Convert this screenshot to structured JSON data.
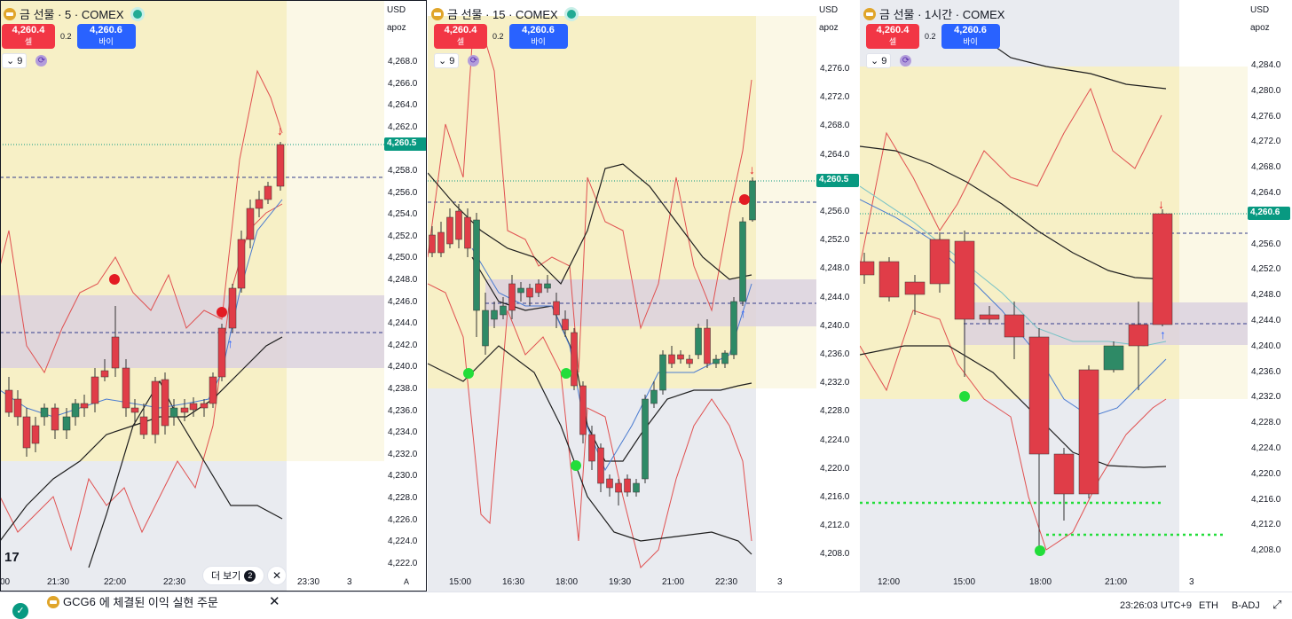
{
  "colors": {
    "up": "#2e8a66",
    "down": "#e03d48",
    "zone_yellow": "#f7f0c6",
    "zone_purple": "#d9cfe0",
    "zone_grey": "#e9ebf0",
    "band_red": "#e05050",
    "band_black": "#1e1e1e",
    "price_tag": "#089981"
  },
  "panes": [
    {
      "id": "p1",
      "title": "금 선물 · 5 · COMEX",
      "sell": {
        "price": "4,260.4",
        "label": "셀"
      },
      "spread": "0.2",
      "buy": {
        "price": "4,260.6",
        "label": "바이"
      },
      "indicator": "9",
      "currency": "USD",
      "mode": "apoz",
      "price_label": "4,260.5",
      "ticks": [
        "4,268.0",
        "4,266.0",
        "4,264.0",
        "4,262.0",
        "4,258.0",
        "4,256.0",
        "4,254.0",
        "4,252.0",
        "4,250.0",
        "4,248.0",
        "4,246.0",
        "4,244.0",
        "4,242.0",
        "4,240.0",
        "4,238.0",
        "4,236.0",
        "4,234.0",
        "4,232.0",
        "4,230.0",
        "4,228.0",
        "4,226.0",
        "4,224.0",
        "4,222.0"
      ],
      "times": [
        "21:30",
        "22:00",
        "22:30",
        "23:30",
        "3"
      ],
      "times_partial": "00",
      "scale_btn": "A"
    },
    {
      "id": "p2",
      "title": "금 선물 · 15 · COMEX",
      "sell": {
        "price": "4,260.4",
        "label": "셀"
      },
      "spread": "0.2",
      "buy": {
        "price": "4,260.6",
        "label": "바이"
      },
      "indicator": "9",
      "currency": "USD",
      "mode": "apoz",
      "price_label": "4,260.5",
      "ticks": [
        "4,276.0",
        "4,272.0",
        "4,268.0",
        "4,264.0",
        "4,256.0",
        "4,252.0",
        "4,248.0",
        "4,244.0",
        "4,240.0",
        "4,236.0",
        "4,232.0",
        "4,228.0",
        "4,224.0",
        "4,220.0",
        "4,216.0",
        "4,212.0",
        "4,208.0"
      ],
      "times": [
        "15:00",
        "16:30",
        "18:00",
        "19:30",
        "21:00",
        "22:30",
        "3"
      ]
    },
    {
      "id": "p3",
      "title": "금 선물 · 1시간 · COMEX",
      "sell": {
        "price": "4,260.4",
        "label": "셀"
      },
      "spread": "0.2",
      "buy": {
        "price": "4,260.6",
        "label": "바이"
      },
      "indicator": "9",
      "currency": "USD",
      "mode": "apoz",
      "price_label": "4,260.6",
      "ticks": [
        "4,284.0",
        "4,280.0",
        "4,276.0",
        "4,272.0",
        "4,268.0",
        "4,264.0",
        "4,256.0",
        "4,252.0",
        "4,248.0",
        "4,244.0",
        "4,240.0",
        "4,236.0",
        "4,232.0",
        "4,228.0",
        "4,224.0",
        "4,220.0",
        "4,216.0",
        "4,212.0",
        "4,208.0"
      ],
      "times": [
        "12:00",
        "15:00",
        "18:00",
        "21:00",
        "3"
      ]
    }
  ],
  "more_button": {
    "label": "더 보기",
    "count": "2"
  },
  "toast": {
    "symbol": "GCG6",
    "message": "에 체결된 이익 실현 주문"
  },
  "status_bar": {
    "clock": "23:26:03 UTC+9",
    "session": "ETH",
    "adj": "B-ADJ"
  }
}
